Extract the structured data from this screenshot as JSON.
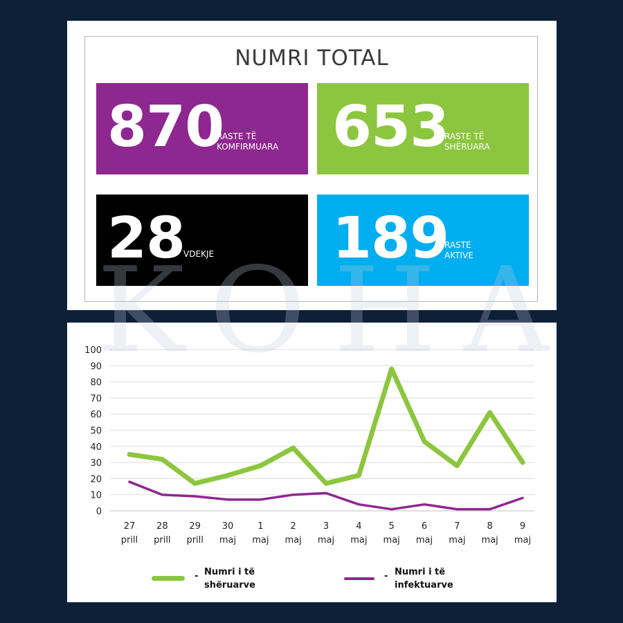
{
  "totals": {
    "title": "NUMRI TOTAL",
    "confirmed": {
      "value": "870",
      "label": "RASTE TË\nKOMFIRMUARA"
    },
    "recovered": {
      "value": "653",
      "label": "RASTE TË\nSHËRUARA"
    },
    "deaths": {
      "value": "28",
      "label": "VDEKJE"
    },
    "active": {
      "value": "189",
      "label": "RASTE\nAKTIVE"
    }
  },
  "watermark": "KOHA",
  "colors": {
    "recovered": "#8cc63f",
    "infected": "#8e278f"
  },
  "chart_data": {
    "type": "line",
    "categories": [
      "27\nprill",
      "28\nprill",
      "29\nprill",
      "30\nmaj",
      "1\nmaj",
      "2\nmaj",
      "3\nmaj",
      "4\nmaj",
      "5\nmaj",
      "6\nmaj",
      "7\nmaj",
      "8\nmaj",
      "9\nmaj"
    ],
    "ylim": [
      0,
      100
    ],
    "yticks": [
      0,
      10,
      20,
      30,
      40,
      50,
      60,
      70,
      80,
      90,
      100
    ],
    "grid": true,
    "legend_position": "bottom",
    "series": [
      {
        "name": "Numri i të\nshëruarve",
        "color": "#8cc63f",
        "values": [
          35,
          32,
          17,
          22,
          28,
          39,
          17,
          22,
          88,
          43,
          28,
          61,
          30
        ]
      },
      {
        "name": "Numri i të\ninfektuarve",
        "color": "#8e278f",
        "values": [
          18,
          10,
          9,
          7,
          7,
          10,
          11,
          4,
          1,
          4,
          1,
          1,
          8
        ]
      }
    ],
    "legend_dash": "-"
  }
}
